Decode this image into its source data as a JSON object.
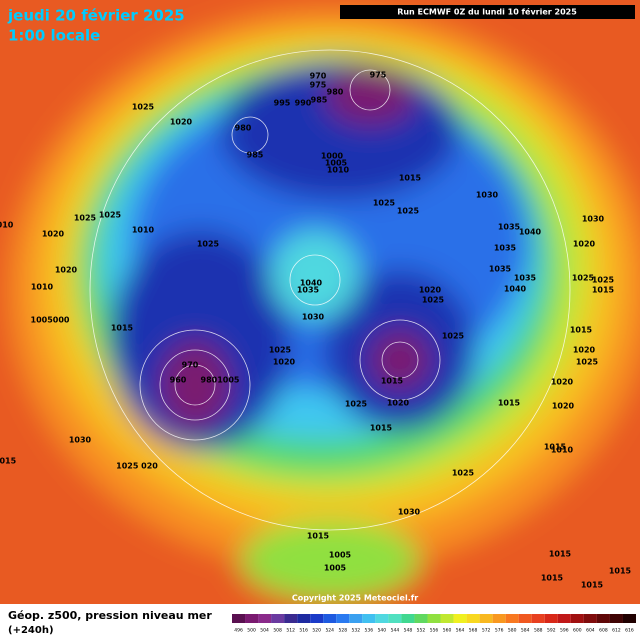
{
  "header": {
    "date": "jeudi 20 février 2025",
    "time": "1:00 locale",
    "run": "Run ECMWF 0Z du lundi 10 février 2025"
  },
  "footer": {
    "title": "Géop. z500, pression niveau mer",
    "lead": "(+240h)",
    "copyright": "Copyright 2025 Meteociel.fr"
  },
  "colorbar": {
    "values": [
      496,
      500,
      504,
      508,
      512,
      516,
      520,
      524,
      528,
      532,
      536,
      540,
      544,
      548,
      552,
      556,
      560,
      564,
      568,
      572,
      576,
      580,
      584,
      588,
      592,
      596,
      600,
      604,
      608,
      612,
      616
    ],
    "colors": [
      "#5a1050",
      "#7a1a70",
      "#8a2a8a",
      "#6a3aa0",
      "#3a2a90",
      "#1e2aa0",
      "#1a3ac8",
      "#1e5ae0",
      "#2a7af0",
      "#3aa0f0",
      "#40c0f0",
      "#50d8e0",
      "#50e0c0",
      "#40d890",
      "#60d860",
      "#90e040",
      "#c0e830",
      "#f0f020",
      "#f8d820",
      "#f8b820",
      "#f89820",
      "#f87820",
      "#f05820",
      "#e84020",
      "#d82818",
      "#c01818",
      "#a01010",
      "#800c0c",
      "#600808",
      "#400404",
      "#200000"
    ]
  },
  "isobar_labels": [
    "1025",
    "1020",
    "975",
    "970",
    "975",
    "980",
    "995",
    "990",
    "985",
    "980",
    "985",
    "1000",
    "1005",
    "1010",
    "1015",
    "1030",
    "1025",
    "1025",
    "1030",
    "1035",
    "1040",
    "1035",
    "1020",
    "1025",
    "1025",
    "1025",
    "1020",
    "1010",
    "1020",
    "1010",
    "1005000",
    "1015",
    "1040",
    "1035",
    "1030",
    "1020",
    "1025",
    "1035",
    "1035",
    "1040",
    "1025",
    "1025",
    "1015",
    "1015",
    "1020",
    "1025",
    "1025",
    "1025",
    "1020",
    "1015",
    "1020",
    "1025",
    "1015",
    "1015",
    "1020",
    "1020",
    "1015",
    "1010",
    "1030",
    "1025 020",
    "1015",
    "1025",
    "1030",
    "1015",
    "1005",
    "1005",
    "1015",
    "1015",
    "1015",
    "1015",
    "970",
    "960",
    "9801005",
    "010"
  ]
}
